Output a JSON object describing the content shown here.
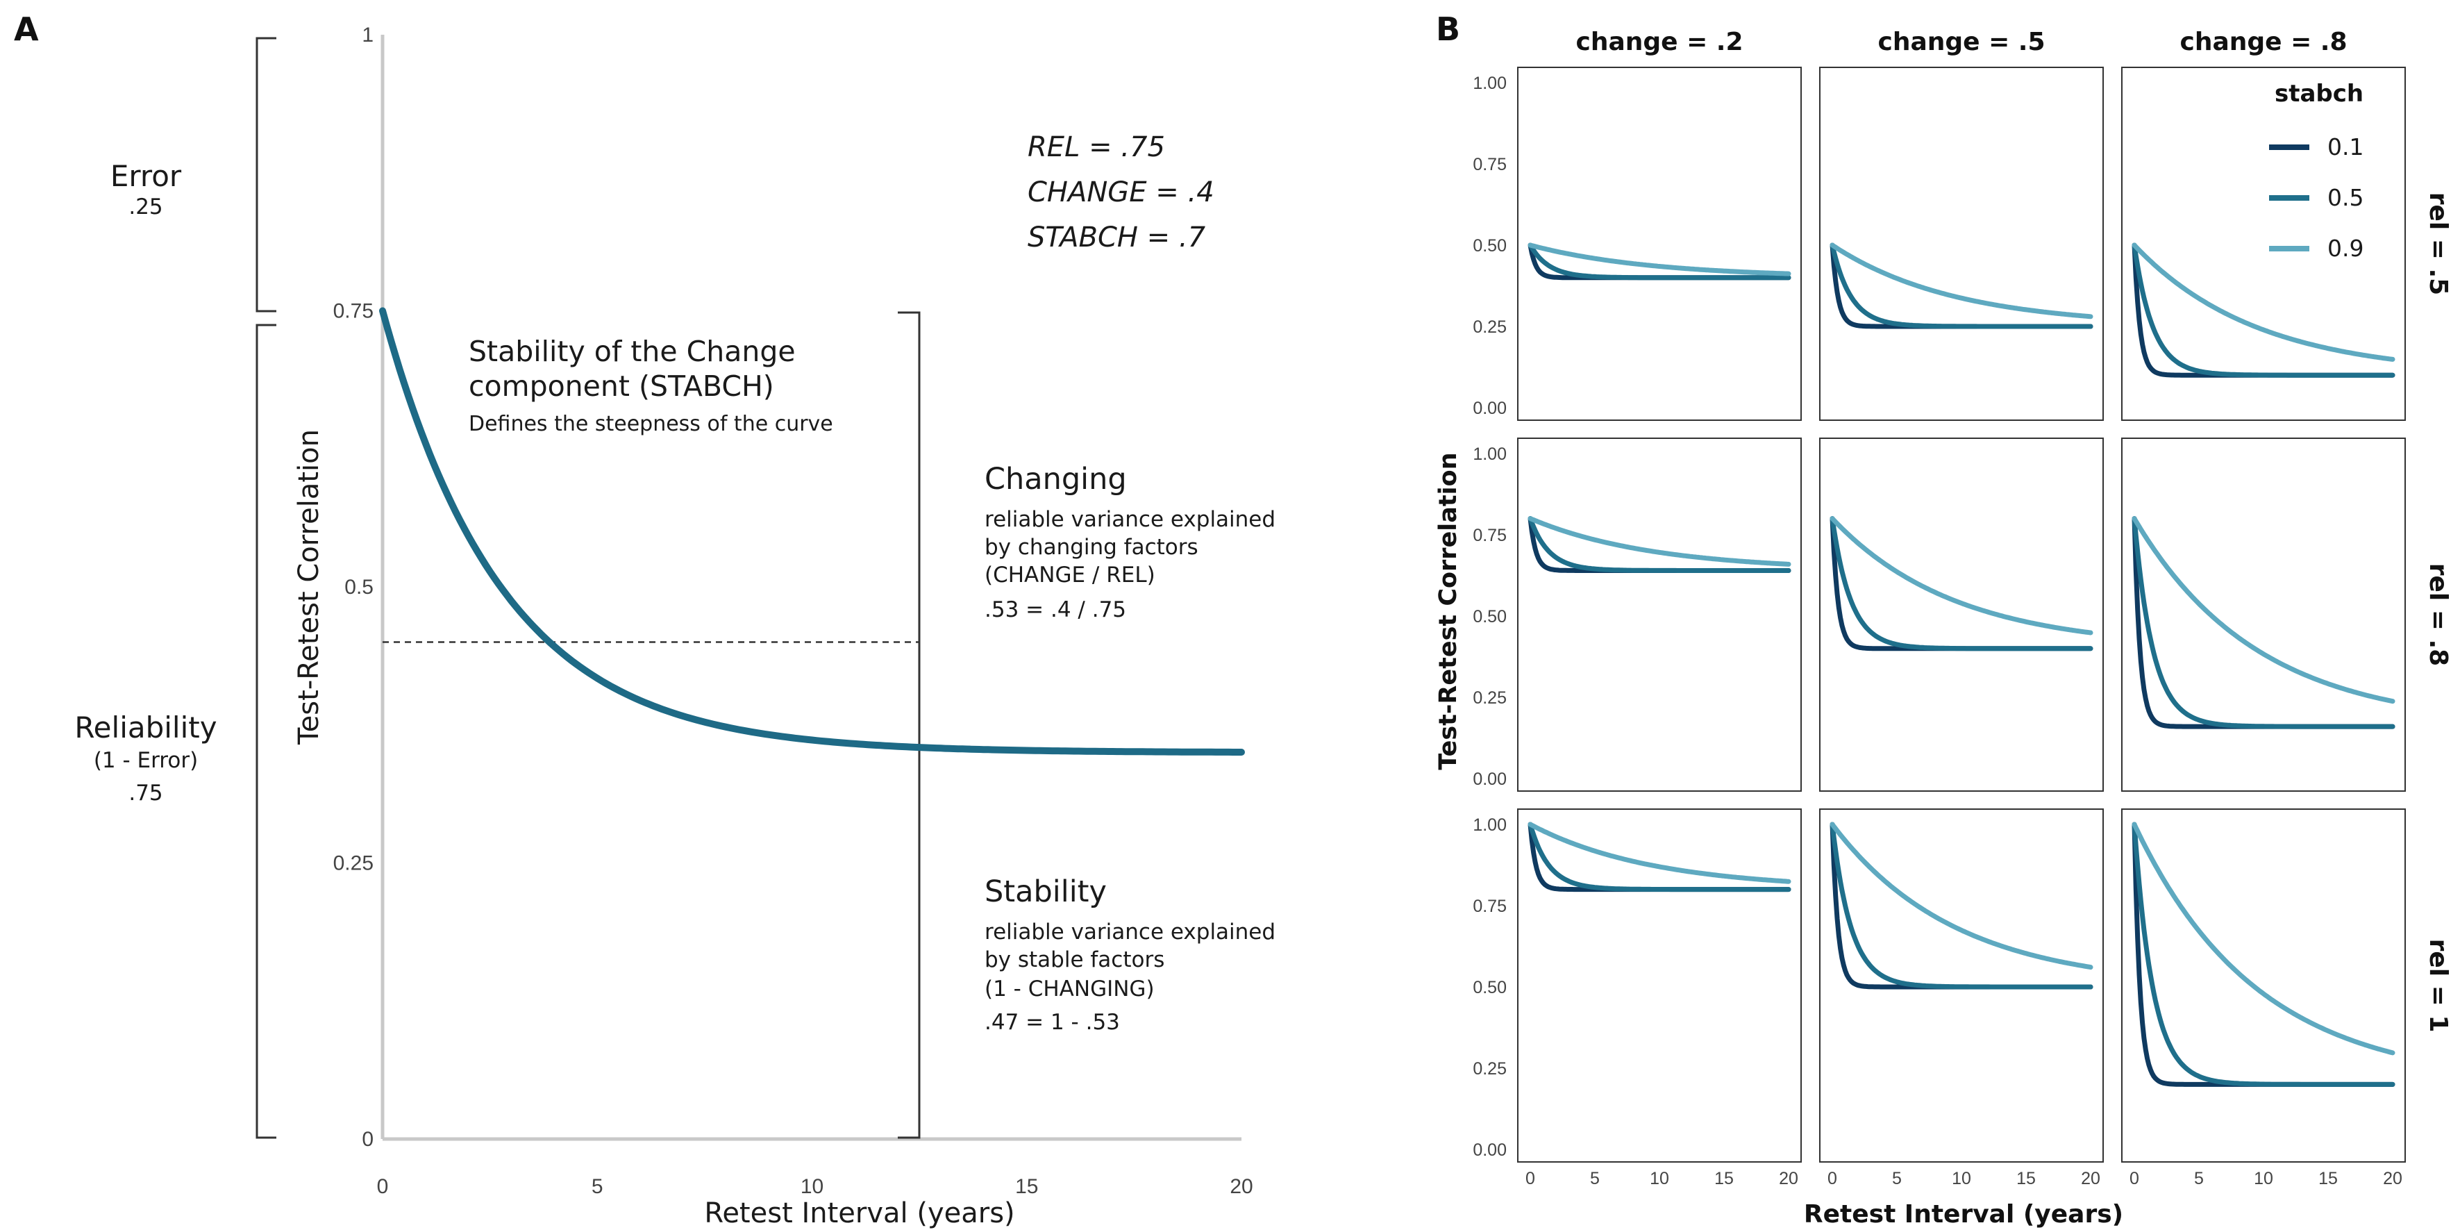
{
  "panel_a": {
    "label": "A",
    "chart_data": {
      "type": "line",
      "xlabel": "Retest Interval (years)",
      "ylabel": "Test-Retest Correlation",
      "xlim": [
        0,
        20
      ],
      "ylim": [
        0,
        1
      ],
      "xticks": [
        "0",
        "5",
        "10",
        "15",
        "20"
      ],
      "yticks": [
        "0",
        "0.25",
        "0.5",
        "0.75",
        "1"
      ],
      "grid": false,
      "params": {
        "rel": 0.75,
        "change": 0.4,
        "stabch": 0.7
      },
      "asymptote": 0.45,
      "series": [
        {
          "x": [
            0,
            1,
            2,
            3,
            4,
            5,
            6,
            7,
            8,
            10,
            12,
            15,
            20
          ],
          "y": [
            0.75,
            0.66,
            0.597,
            0.553,
            0.522,
            0.5,
            0.485,
            0.474,
            0.467,
            0.459,
            0.454,
            0.451,
            0.45
          ],
          "color": "#1e6a86"
        }
      ]
    },
    "params_text": [
      "REL = .75",
      "CHANGE = .4",
      "STABCH = .7"
    ],
    "error": {
      "title": "Error",
      "value": ".25"
    },
    "reliability": {
      "title": "Reliability",
      "sub": "(1 - Error)",
      "value": ".75"
    },
    "stabch_note": {
      "line1": "Stability of the Change",
      "line2": "component (STABCH)",
      "line3": "Defines the steepness of the curve"
    },
    "changing": {
      "title": "Changing",
      "lines": [
        "reliable variance explained",
        "by changing factors",
        "(CHANGE / REL)",
        ".53 = .4 / .75"
      ]
    },
    "stability": {
      "title": "Stability",
      "lines": [
        "reliable variance explained",
        "by stable factors",
        "(1 - CHANGING)",
        ".47 = 1 - .53"
      ]
    }
  },
  "panel_b": {
    "label": "B",
    "chart_data": {
      "type": "line",
      "xlabel": "Retest Interval (years)",
      "ylabel": "Test-Retest Correlation",
      "xlim": [
        0,
        20
      ],
      "ylim": [
        0,
        1
      ],
      "xticks": [
        "0",
        "5",
        "10",
        "15",
        "20"
      ],
      "yticks": [
        "0.00",
        "0.25",
        "0.50",
        "0.75",
        "1.00"
      ],
      "grid": false,
      "col_facets": [
        "change = .2",
        "change = .5",
        "change = .8"
      ],
      "row_facets": [
        "rel = .5",
        "rel = .8",
        "rel = 1"
      ],
      "change_values": [
        0.2,
        0.5,
        0.8
      ],
      "rel_values": [
        0.5,
        0.8,
        1.0
      ],
      "legend": {
        "title": "stabch",
        "placement": "top-right",
        "entries": [
          {
            "label": "0.1",
            "stabch": 0.1,
            "color": "#0f3a60"
          },
          {
            "label": "0.5",
            "stabch": 0.5,
            "color": "#1f6f8b"
          },
          {
            "label": "0.9",
            "stabch": 0.9,
            "color": "#5ea9c0"
          }
        ]
      },
      "model": "r(t) = rel * ((1 - change) + change * stabch^t)"
    }
  }
}
